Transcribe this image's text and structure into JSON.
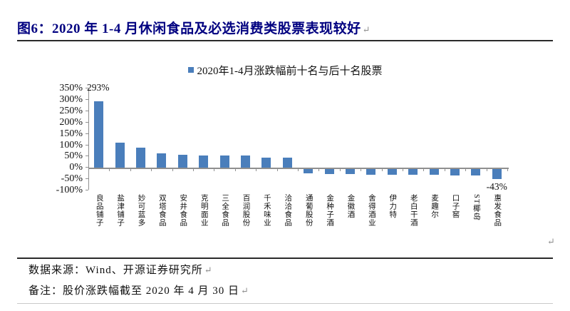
{
  "figure": {
    "title": "图6：2020 年 1-4 月休闲食品及必选消费类股票表现较好",
    "paragraph_mark": "↵"
  },
  "chart_data": {
    "type": "bar",
    "title": "",
    "legend": [
      "2020年1-4月涨跌幅前十名与后十名股票"
    ],
    "legend_position": "top-center",
    "grid": false,
    "bar_color": "#4A7EBB",
    "axis_color": "#8f8f8f",
    "ylabel": "",
    "xlabel": "",
    "ylim": [
      -100,
      350
    ],
    "ytick_step_pct": 50,
    "ytick_labels": [
      "350%",
      "300%",
      "250%",
      "200%",
      "150%",
      "100%",
      "50%",
      "0%",
      "-50%",
      "-100%"
    ],
    "categories": [
      "良品铺子",
      "盐津铺子",
      "妙可蓝多",
      "双塔食品",
      "安井食品",
      "克明面业",
      "三全食品",
      "百润股份",
      "千禾味业",
      "洽洽食品",
      "通葡股份",
      "金种子酒",
      "金徽酒",
      "舍得酒业",
      "伊力特",
      "老白干酒",
      "麦趣尔",
      "口子窖",
      "ST椰岛",
      "惠发食品"
    ],
    "values": [
      293,
      110,
      88,
      64,
      58,
      55,
      53,
      52,
      45,
      44,
      -20,
      -22,
      -23,
      -24,
      -25,
      -26,
      -26,
      -27,
      -28,
      -43
    ],
    "annotations": [
      {
        "text": "293%",
        "category_index": 0,
        "position": "above-left"
      },
      {
        "text": "-43%",
        "category_index": 19,
        "position": "below"
      }
    ]
  },
  "footer": {
    "source_label": "数据来源：Wind、开源证券研究所",
    "note_label": "备注：股价涨跌幅截至 2020 年 4 月 30 日"
  },
  "colors": {
    "title": "#000080",
    "bar": "#4A7EBB",
    "axis": "#8f8f8f",
    "text": "#111111",
    "paragraph_mark": "#909090",
    "divider_dark": "#2a2a2a",
    "divider_light": "#c9c9c9"
  }
}
